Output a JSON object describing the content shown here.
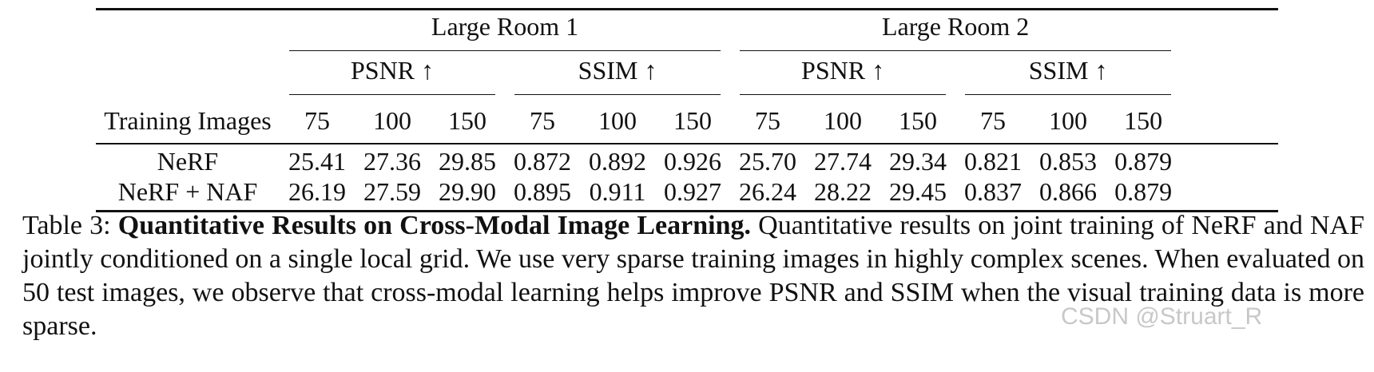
{
  "table": {
    "groups": [
      {
        "label": "Large Room 1"
      },
      {
        "label": "Large Room 2"
      }
    ],
    "metrics": [
      "PSNR ↑",
      "SSIM ↑",
      "PSNR ↑",
      "SSIM ↑"
    ],
    "row_header": "Training Images",
    "training_images": [
      "75",
      "100",
      "150",
      "75",
      "100",
      "150",
      "75",
      "100",
      "150",
      "75",
      "100",
      "150"
    ],
    "rows": [
      {
        "method": "NeRF",
        "bold": false,
        "values": [
          "25.41",
          "27.36",
          "29.85",
          "0.872",
          "0.892",
          "0.926",
          "25.70",
          "27.74",
          "29.34",
          "0.821",
          "0.853",
          "0.879"
        ]
      },
      {
        "method": "NeRF + NAF",
        "bold": true,
        "values": [
          "26.19",
          "27.59",
          "29.90",
          "0.895",
          "0.911",
          "0.927",
          "26.24",
          "28.22",
          "29.45",
          "0.837",
          "0.866",
          "0.879"
        ]
      }
    ]
  },
  "caption": {
    "label": "Table 3:",
    "title": "Quantitative Results on Cross-Modal Image Learning.",
    "text": "Quantitative results on joint training of NeRF and NAF jointly conditioned on a single local grid. We use very sparse training images in highly complex scenes. When evaluated on 50 test images, we observe that cross-modal learning helps improve PSNR and SSIM when the visual training data is more sparse."
  },
  "watermark": "CSDN @Struart_R"
}
